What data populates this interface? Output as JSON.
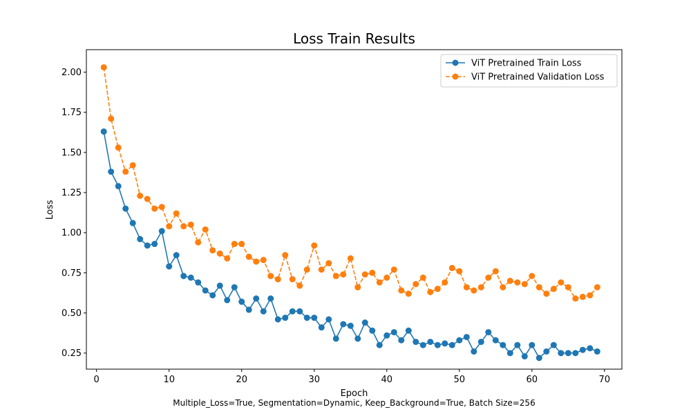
{
  "chart_data": {
    "type": "line",
    "title": "Loss Train Results",
    "xlabel": "Epoch",
    "ylabel": "Loss",
    "caption": "Multiple_Loss=True, Segmentation=Dynamic, Keep_Background=True, Batch Size=256",
    "xlim": [
      -1.4,
      72.4
    ],
    "ylim": [
      0.15,
      2.14
    ],
    "xticks": [
      0,
      10,
      20,
      30,
      40,
      50,
      60,
      70
    ],
    "xtick_labels": [
      "0",
      "10",
      "20",
      "30",
      "40",
      "50",
      "60",
      "70"
    ],
    "yticks": [
      0.25,
      0.5,
      0.75,
      1.0,
      1.25,
      1.5,
      1.75,
      2.0
    ],
    "ytick_labels": [
      "0.25",
      "0.50",
      "0.75",
      "1.00",
      "1.25",
      "1.50",
      "1.75",
      "2.00"
    ],
    "grid": false,
    "legend_position": "top-right",
    "x": [
      1,
      2,
      3,
      4,
      5,
      6,
      7,
      8,
      9,
      10,
      11,
      12,
      13,
      14,
      15,
      16,
      17,
      18,
      19,
      20,
      21,
      22,
      23,
      24,
      25,
      26,
      27,
      28,
      29,
      30,
      31,
      32,
      33,
      34,
      35,
      36,
      37,
      38,
      39,
      40,
      41,
      42,
      43,
      44,
      45,
      46,
      47,
      48,
      49,
      50,
      51,
      52,
      53,
      54,
      55,
      56,
      57,
      58,
      59,
      60,
      61,
      62,
      63,
      64,
      65,
      66,
      67,
      68,
      69
    ],
    "series": [
      {
        "name": "ViT Pretrained Train Loss",
        "color": "#1f77b4",
        "linestyle": "solid",
        "marker": "circle",
        "values": [
          1.63,
          1.38,
          1.29,
          1.15,
          1.06,
          0.96,
          0.92,
          0.93,
          1.01,
          0.79,
          0.86,
          0.73,
          0.72,
          0.69,
          0.64,
          0.61,
          0.67,
          0.58,
          0.66,
          0.57,
          0.52,
          0.59,
          0.51,
          0.59,
          0.46,
          0.47,
          0.51,
          0.51,
          0.47,
          0.47,
          0.41,
          0.46,
          0.34,
          0.43,
          0.42,
          0.34,
          0.44,
          0.39,
          0.3,
          0.36,
          0.38,
          0.33,
          0.39,
          0.32,
          0.3,
          0.32,
          0.3,
          0.31,
          0.3,
          0.33,
          0.35,
          0.26,
          0.32,
          0.38,
          0.33,
          0.3,
          0.25,
          0.3,
          0.23,
          0.3,
          0.22,
          0.26,
          0.3,
          0.25,
          0.25,
          0.25,
          0.27,
          0.28,
          0.26
        ]
      },
      {
        "name": "ViT Pretrained Validation Loss",
        "color": "#ff7f0e",
        "linestyle": "dashed",
        "marker": "circle",
        "values": [
          2.03,
          1.71,
          1.53,
          1.38,
          1.42,
          1.23,
          1.21,
          1.15,
          1.16,
          1.04,
          1.12,
          1.04,
          1.05,
          0.94,
          1.02,
          0.89,
          0.87,
          0.84,
          0.93,
          0.93,
          0.85,
          0.82,
          0.83,
          0.73,
          0.71,
          0.86,
          0.71,
          0.67,
          0.77,
          0.92,
          0.77,
          0.81,
          0.73,
          0.74,
          0.84,
          0.66,
          0.74,
          0.75,
          0.69,
          0.72,
          0.77,
          0.64,
          0.62,
          0.68,
          0.72,
          0.63,
          0.65,
          0.69,
          0.78,
          0.76,
          0.66,
          0.64,
          0.66,
          0.72,
          0.76,
          0.66,
          0.7,
          0.69,
          0.68,
          0.73,
          0.66,
          0.62,
          0.65,
          0.69,
          0.66,
          0.59,
          0.6,
          0.61,
          0.66
        ]
      }
    ]
  }
}
